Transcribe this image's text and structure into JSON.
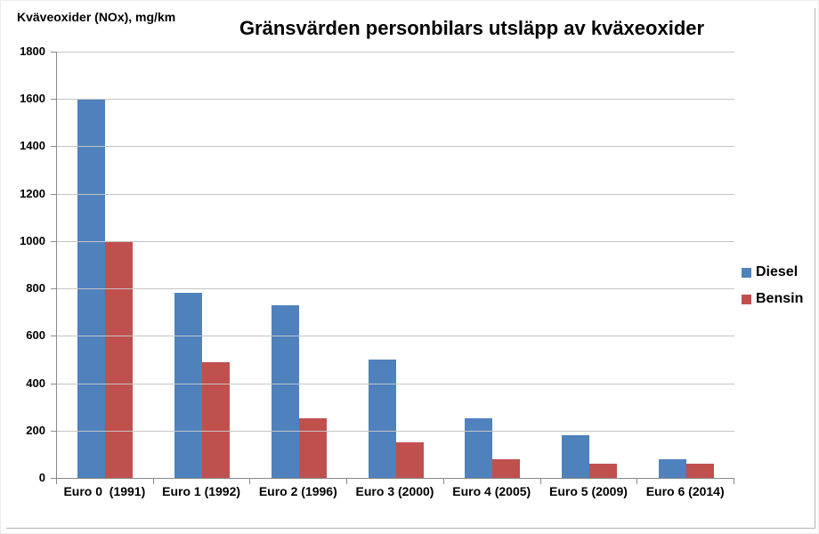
{
  "chart_data": {
    "type": "bar",
    "title": "Gränsvärden personbilars utsläpp av kväxeoxider",
    "ylabel": "Kväveoxider (NOx), mg/km",
    "xlabel": "",
    "categories": [
      "Euro 0  (1991)",
      "Euro 1 (1992)",
      "Euro 2 (1996)",
      "Euro 3 (2000)",
      "Euro 4 (2005)",
      "Euro 5 (2009)",
      "Euro 6 (2014)"
    ],
    "series": [
      {
        "name": "Diesel",
        "color": "#4F81BD",
        "values": [
          1600,
          780,
          730,
          500,
          250,
          180,
          80
        ]
      },
      {
        "name": "Bensin",
        "color": "#C0504D",
        "values": [
          1000,
          490,
          250,
          150,
          80,
          60,
          60
        ]
      }
    ],
    "ylim": [
      0,
      1800
    ],
    "y_ticks": [
      0,
      200,
      400,
      600,
      800,
      1000,
      1200,
      1400,
      1600,
      1800
    ],
    "grid": true,
    "legend_position": "right",
    "axis_color": "#898989",
    "gridline_color": "#C4C4C4",
    "background": "#FFFFFF"
  }
}
